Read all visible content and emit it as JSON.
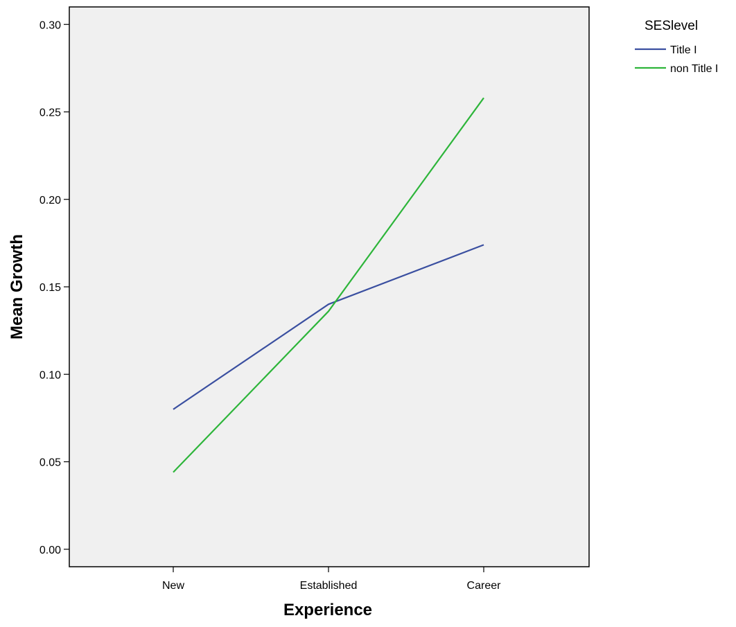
{
  "chart_data": {
    "type": "line",
    "title": "",
    "xlabel": "Experience",
    "ylabel": "Mean Growth",
    "categories": [
      "New",
      "Established",
      "Career"
    ],
    "ylim": [
      -0.01,
      0.31
    ],
    "yticks": [
      0.0,
      0.05,
      0.1,
      0.15,
      0.2,
      0.25,
      0.3
    ],
    "ytick_labels": [
      "0.00",
      "0.05",
      "0.10",
      "0.15",
      "0.20",
      "0.25",
      "0.30"
    ],
    "grid": false,
    "plot_background": "#f0f0f0",
    "legend": {
      "title": "SESlevel",
      "placement": "top-right outside"
    },
    "series": [
      {
        "name": "Title I",
        "color": "#3a4fa0",
        "values": [
          0.08,
          0.14,
          0.174
        ]
      },
      {
        "name": "non Title I",
        "color": "#2db53a",
        "values": [
          0.044,
          0.136,
          0.258
        ]
      }
    ]
  }
}
